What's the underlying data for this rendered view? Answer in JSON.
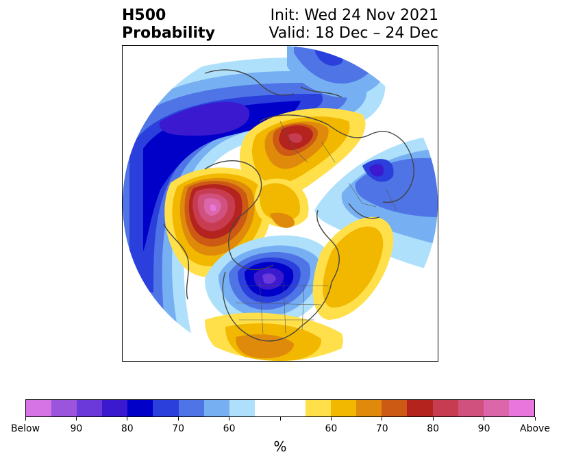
{
  "title": {
    "left_line1": "H500",
    "left_line2": "Probability",
    "right_line1": "Init: Wed 24 Nov 2021",
    "right_line2": "Valid: 18 Dec – 24 Dec"
  },
  "map": {
    "projection": "north-polar-stereographic",
    "anomalies": [
      {
        "kind": "above",
        "region": "Alaska / Bering",
        "peak_percent": 90
      },
      {
        "kind": "above",
        "region": "Siberia / Arctic Russia",
        "peak_percent": 80
      },
      {
        "kind": "below",
        "region": "Hudson Bay / Canada",
        "peak_percent": 90
      },
      {
        "kind": "below",
        "region": "North Pacific",
        "peak_percent": 90
      },
      {
        "kind": "below",
        "region": "Europe",
        "peak_percent": 80
      },
      {
        "kind": "above",
        "region": "North Atlantic",
        "peak_percent": 60
      }
    ]
  },
  "colorbar": {
    "unit_label": "%",
    "colors": [
      "#d674e6",
      "#9b55dd",
      "#6b38d9",
      "#3a19cf",
      "#0000c8",
      "#2a3fdc",
      "#4f74e6",
      "#77b0f2",
      "#aee0fb",
      "#ffffff",
      "#ffffff",
      "#ffe04b",
      "#f2b800",
      "#e08a0c",
      "#cc5a14",
      "#b4231e",
      "#c83c52",
      "#d0507e",
      "#dc66aa",
      "#e876dc"
    ],
    "ticks": [
      {
        "label": "Below",
        "boundary": 0
      },
      {
        "label": "90",
        "boundary": 2
      },
      {
        "label": "80",
        "boundary": 4
      },
      {
        "label": "70",
        "boundary": 6
      },
      {
        "label": "60",
        "boundary": 8
      },
      {
        "label": "",
        "boundary": 10
      },
      {
        "label": "60",
        "boundary": 12
      },
      {
        "label": "70",
        "boundary": 14
      },
      {
        "label": "80",
        "boundary": 16
      },
      {
        "label": "90",
        "boundary": 18
      },
      {
        "label": "Above",
        "boundary": 20
      }
    ]
  }
}
